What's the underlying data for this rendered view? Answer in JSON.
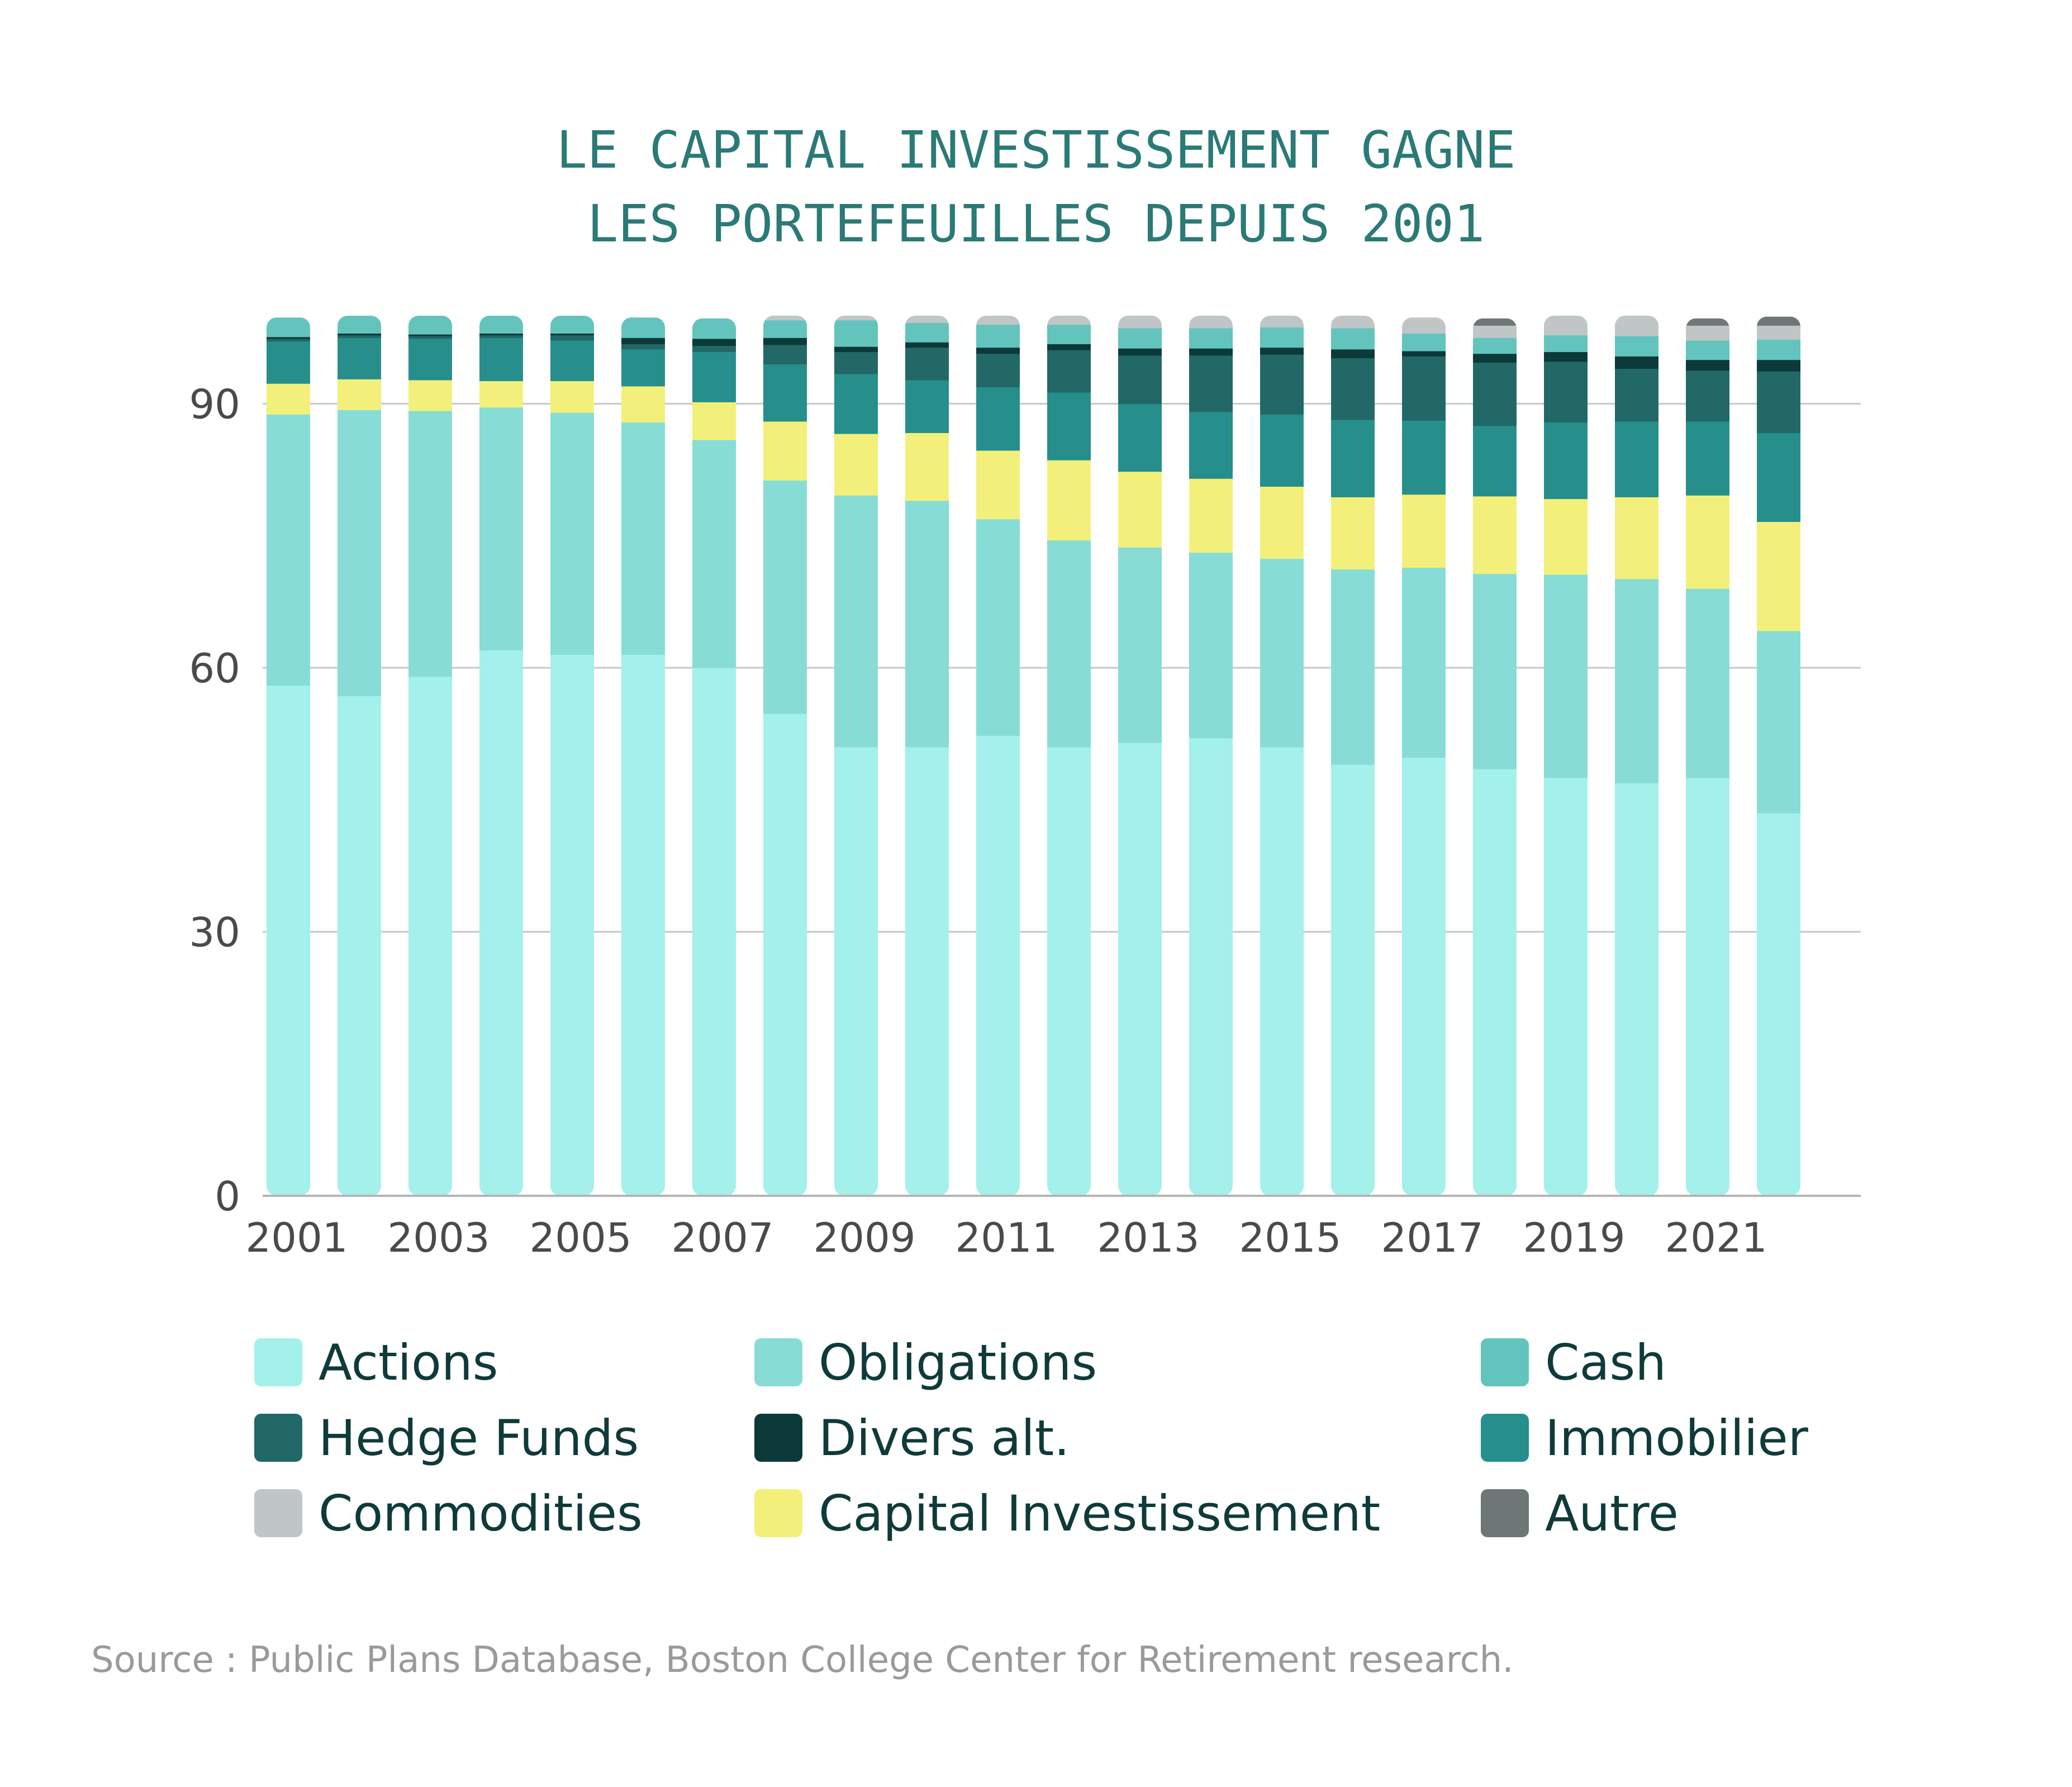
{
  "chart_data": {
    "type": "bar",
    "stacked": true,
    "title_lines": [
      "LE CAPITAL INVESTISSEMENT GAGNE",
      "LES PORTEFEUILLES DEPUIS 2001"
    ],
    "categories": [
      "2001",
      "2002",
      "2003",
      "2004",
      "2005",
      "2006",
      "2007",
      "2008",
      "2009",
      "2010",
      "2011",
      "2012",
      "2013",
      "2014",
      "2015",
      "2016",
      "2017",
      "2018",
      "2019",
      "2020",
      "2021",
      "2022"
    ],
    "x_tick_labels": [
      "2001",
      "2003",
      "2005",
      "2007",
      "2009",
      "2011",
      "2013",
      "2015",
      "2017",
      "2019",
      "2021"
    ],
    "y_ticks": [
      0,
      30,
      60,
      90
    ],
    "ylim": [
      0,
      100
    ],
    "grid": true,
    "legend_position": "bottom",
    "series": [
      {
        "name": "Actions",
        "color": "#a4f0ea",
        "values": [
          58.0,
          56.8,
          59.0,
          62.0,
          61.5,
          61.5,
          60.0,
          54.8,
          51.0,
          51.0,
          52.3,
          51.0,
          51.5,
          52.0,
          51.0,
          49.0,
          49.8,
          48.5,
          47.5,
          46.9,
          47.5,
          43.5
        ]
      },
      {
        "name": "Obligations",
        "color": "#87ddd5",
        "values": [
          30.8,
          32.5,
          30.2,
          27.6,
          27.5,
          26.4,
          25.9,
          26.5,
          28.6,
          28.0,
          24.6,
          23.5,
          22.2,
          21.1,
          21.4,
          22.2,
          21.6,
          22.2,
          23.1,
          23.2,
          21.5,
          20.7
        ]
      },
      {
        "name": "Capital Investissement",
        "color": "#f2f07a",
        "values": [
          3.5,
          3.5,
          3.5,
          3.0,
          3.6,
          4.1,
          4.3,
          6.7,
          7.0,
          7.7,
          7.8,
          9.1,
          8.6,
          8.4,
          8.2,
          8.2,
          8.3,
          8.8,
          8.6,
          9.3,
          10.6,
          12.4
        ]
      },
      {
        "name": "Immobilier",
        "color": "#268f8c",
        "values": [
          4.8,
          4.7,
          4.7,
          4.9,
          4.6,
          4.2,
          5.7,
          6.5,
          6.8,
          6.0,
          7.2,
          7.7,
          7.7,
          7.6,
          8.2,
          8.8,
          8.4,
          8.0,
          8.7,
          8.6,
          8.4,
          10.1
        ]
      },
      {
        "name": "Hedge Funds",
        "color": "#226866",
        "values": [
          0.3,
          0.3,
          0.3,
          0.3,
          0.6,
          0.6,
          0.7,
          2.2,
          2.5,
          3.7,
          3.8,
          4.8,
          5.5,
          6.4,
          6.8,
          7.0,
          7.3,
          7.2,
          6.9,
          6.0,
          5.8,
          7.0
        ]
      },
      {
        "name": "Divers alt.",
        "color": "#0b3a38",
        "values": [
          0.2,
          0.2,
          0.2,
          0.2,
          0.2,
          0.7,
          0.8,
          0.8,
          0.6,
          0.6,
          0.7,
          0.7,
          0.8,
          0.8,
          0.8,
          1.0,
          0.6,
          1.0,
          1.1,
          1.4,
          1.2,
          1.3
        ]
      },
      {
        "name": "Cash",
        "color": "#62c4bd",
        "values": [
          2.2,
          2.0,
          2.1,
          2.0,
          2.0,
          2.3,
          2.3,
          2.0,
          3.0,
          2.2,
          2.6,
          2.2,
          2.3,
          2.3,
          2.3,
          2.4,
          2.0,
          1.8,
          1.9,
          2.3,
          2.2,
          2.3
        ]
      },
      {
        "name": "Commodities",
        "color": "#bfc6c5",
        "values": [
          0.0,
          0.0,
          0.0,
          0.0,
          0.0,
          0.0,
          0.0,
          0.5,
          0.5,
          0.8,
          1.0,
          1.0,
          1.4,
          1.4,
          1.3,
          1.4,
          1.8,
          1.4,
          2.2,
          2.3,
          1.7,
          1.6
        ]
      },
      {
        "name": "Autre",
        "color": "#6d7775",
        "values": [
          0.0,
          0.0,
          0.0,
          0.0,
          0.0,
          0.0,
          0.0,
          0.0,
          0.0,
          0.0,
          0.0,
          0.0,
          0.0,
          0.0,
          0.0,
          0.0,
          0.0,
          0.8,
          0.0,
          0.0,
          0.8,
          1.0
        ]
      }
    ],
    "legend": [
      {
        "name": "Actions",
        "color": "#a4f0ea"
      },
      {
        "name": "Obligations",
        "color": "#87ddd5"
      },
      {
        "name": "Cash",
        "color": "#62c4bd"
      },
      {
        "name": "Hedge Funds",
        "color": "#226866"
      },
      {
        "name": "Divers alt.",
        "color": "#0b3a38"
      },
      {
        "name": "Immobilier",
        "color": "#268f8c"
      },
      {
        "name": "Commodities",
        "color": "#bfc6c5"
      },
      {
        "name": "Capital Investissement",
        "color": "#f2f07a"
      },
      {
        "name": "Autre",
        "color": "#6d7775"
      }
    ],
    "source": "Source :  Public Plans Database, Boston College Center for Retirement research."
  }
}
